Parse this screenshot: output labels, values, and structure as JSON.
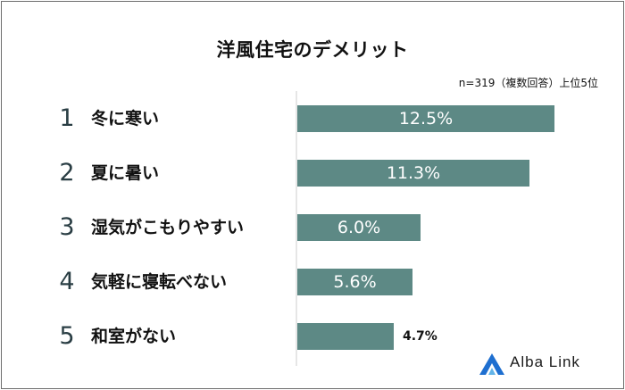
{
  "chart_data": {
    "type": "bar",
    "orientation": "horizontal",
    "title": "洋風住宅のデメリット",
    "subtitle": "n=319（複数回答）上位5位",
    "ranks": [
      "1",
      "2",
      "3",
      "4",
      "5"
    ],
    "categories": [
      "冬に寒い",
      "夏に暑い",
      "湿気がこもりやすい",
      "気軽に寝転べない",
      "和室がない"
    ],
    "values": [
      12.5,
      11.3,
      6.0,
      5.6,
      4.7
    ],
    "value_labels": [
      "12.5%",
      "11.3%",
      "6.0%",
      "5.6%",
      "4.7%"
    ],
    "xlim": [
      0,
      12.5
    ],
    "bar_color": "#5d8985",
    "grid": false
  },
  "brand": {
    "name": "Alba Link",
    "accent": "#1e6fd0"
  }
}
